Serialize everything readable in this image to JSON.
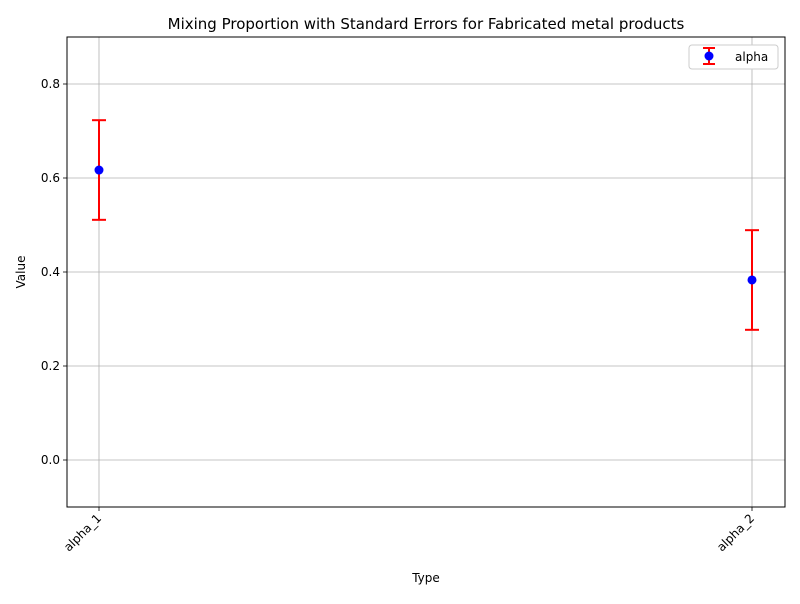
{
  "chart_data": {
    "type": "scatter",
    "title": "Mixing Proportion with Standard Errors for Fabricated metal products",
    "xlabel": "Type",
    "ylabel": "Value",
    "categories": [
      "alpha_1",
      "alpha_2"
    ],
    "series": [
      {
        "name": "alpha",
        "values": [
          0.617,
          0.383
        ],
        "errors": [
          0.106,
          0.106
        ]
      }
    ],
    "ylim": [
      -0.1,
      0.9
    ],
    "yticks": [
      0.0,
      0.2,
      0.4,
      0.6,
      0.8
    ],
    "ytick_labels": [
      "0.0",
      "0.2",
      "0.4",
      "0.6",
      "0.8"
    ],
    "grid": true,
    "legend_position": "top-right",
    "colors": {
      "point": "#0000ff",
      "errorbar": "#ff0000",
      "grid": "#b0b0b0"
    }
  }
}
